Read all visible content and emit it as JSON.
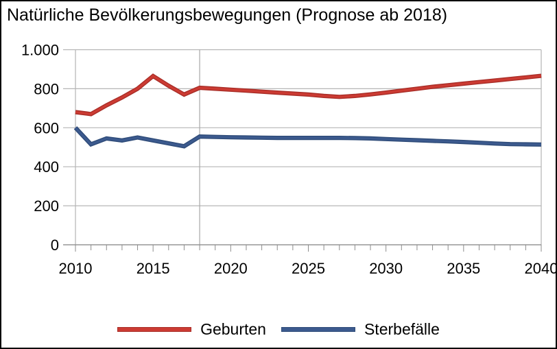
{
  "chart_data": {
    "type": "line",
    "title": "Natürliche Bevölkerungsbewegungen (Prognose ab 2018)",
    "ylim": [
      0,
      1000
    ],
    "grid": "horizontal-major",
    "legend_position": "bottom",
    "divider_year": 2018,
    "x_years": [
      2010,
      2011,
      2012,
      2013,
      2014,
      2015,
      2016,
      2017,
      2018,
      2019,
      2020,
      2021,
      2022,
      2023,
      2024,
      2025,
      2026,
      2027,
      2028,
      2029,
      2030,
      2031,
      2032,
      2033,
      2034,
      2035,
      2036,
      2037,
      2038,
      2039,
      2040
    ],
    "x_ticks": [
      {
        "label": "2010",
        "value": 2010
      },
      {
        "label": "2015",
        "value": 2015
      },
      {
        "label": "2020",
        "value": 2020
      },
      {
        "label": "2025",
        "value": 2025
      },
      {
        "label": "2030",
        "value": 2030
      },
      {
        "label": "2035",
        "value": 2035
      },
      {
        "label": "2040",
        "value": 2040
      }
    ],
    "y_ticks": [
      {
        "label": "0",
        "value": 0
      },
      {
        "label": "200",
        "value": 200
      },
      {
        "label": "400",
        "value": 400
      },
      {
        "label": "600",
        "value": 600
      },
      {
        "label": "800",
        "value": 800
      },
      {
        "label": "1.000",
        "value": 1000
      }
    ],
    "series": [
      {
        "name": "Geburten",
        "color": "#cc3b33",
        "values": [
          680,
          670,
          715,
          755,
          800,
          865,
          815,
          770,
          805,
          800,
          795,
          790,
          785,
          780,
          775,
          770,
          763,
          758,
          763,
          771,
          780,
          790,
          800,
          810,
          818,
          826,
          834,
          842,
          850,
          858,
          866
        ]
      },
      {
        "name": "Sterbefälle",
        "color": "#3c5a8e",
        "values": [
          600,
          515,
          545,
          535,
          550,
          535,
          520,
          505,
          555,
          553,
          551,
          550,
          549,
          548,
          548,
          548,
          548,
          548,
          547,
          545,
          542,
          539,
          536,
          533,
          530,
          527,
          523,
          519,
          516,
          515,
          514
        ]
      }
    ]
  }
}
